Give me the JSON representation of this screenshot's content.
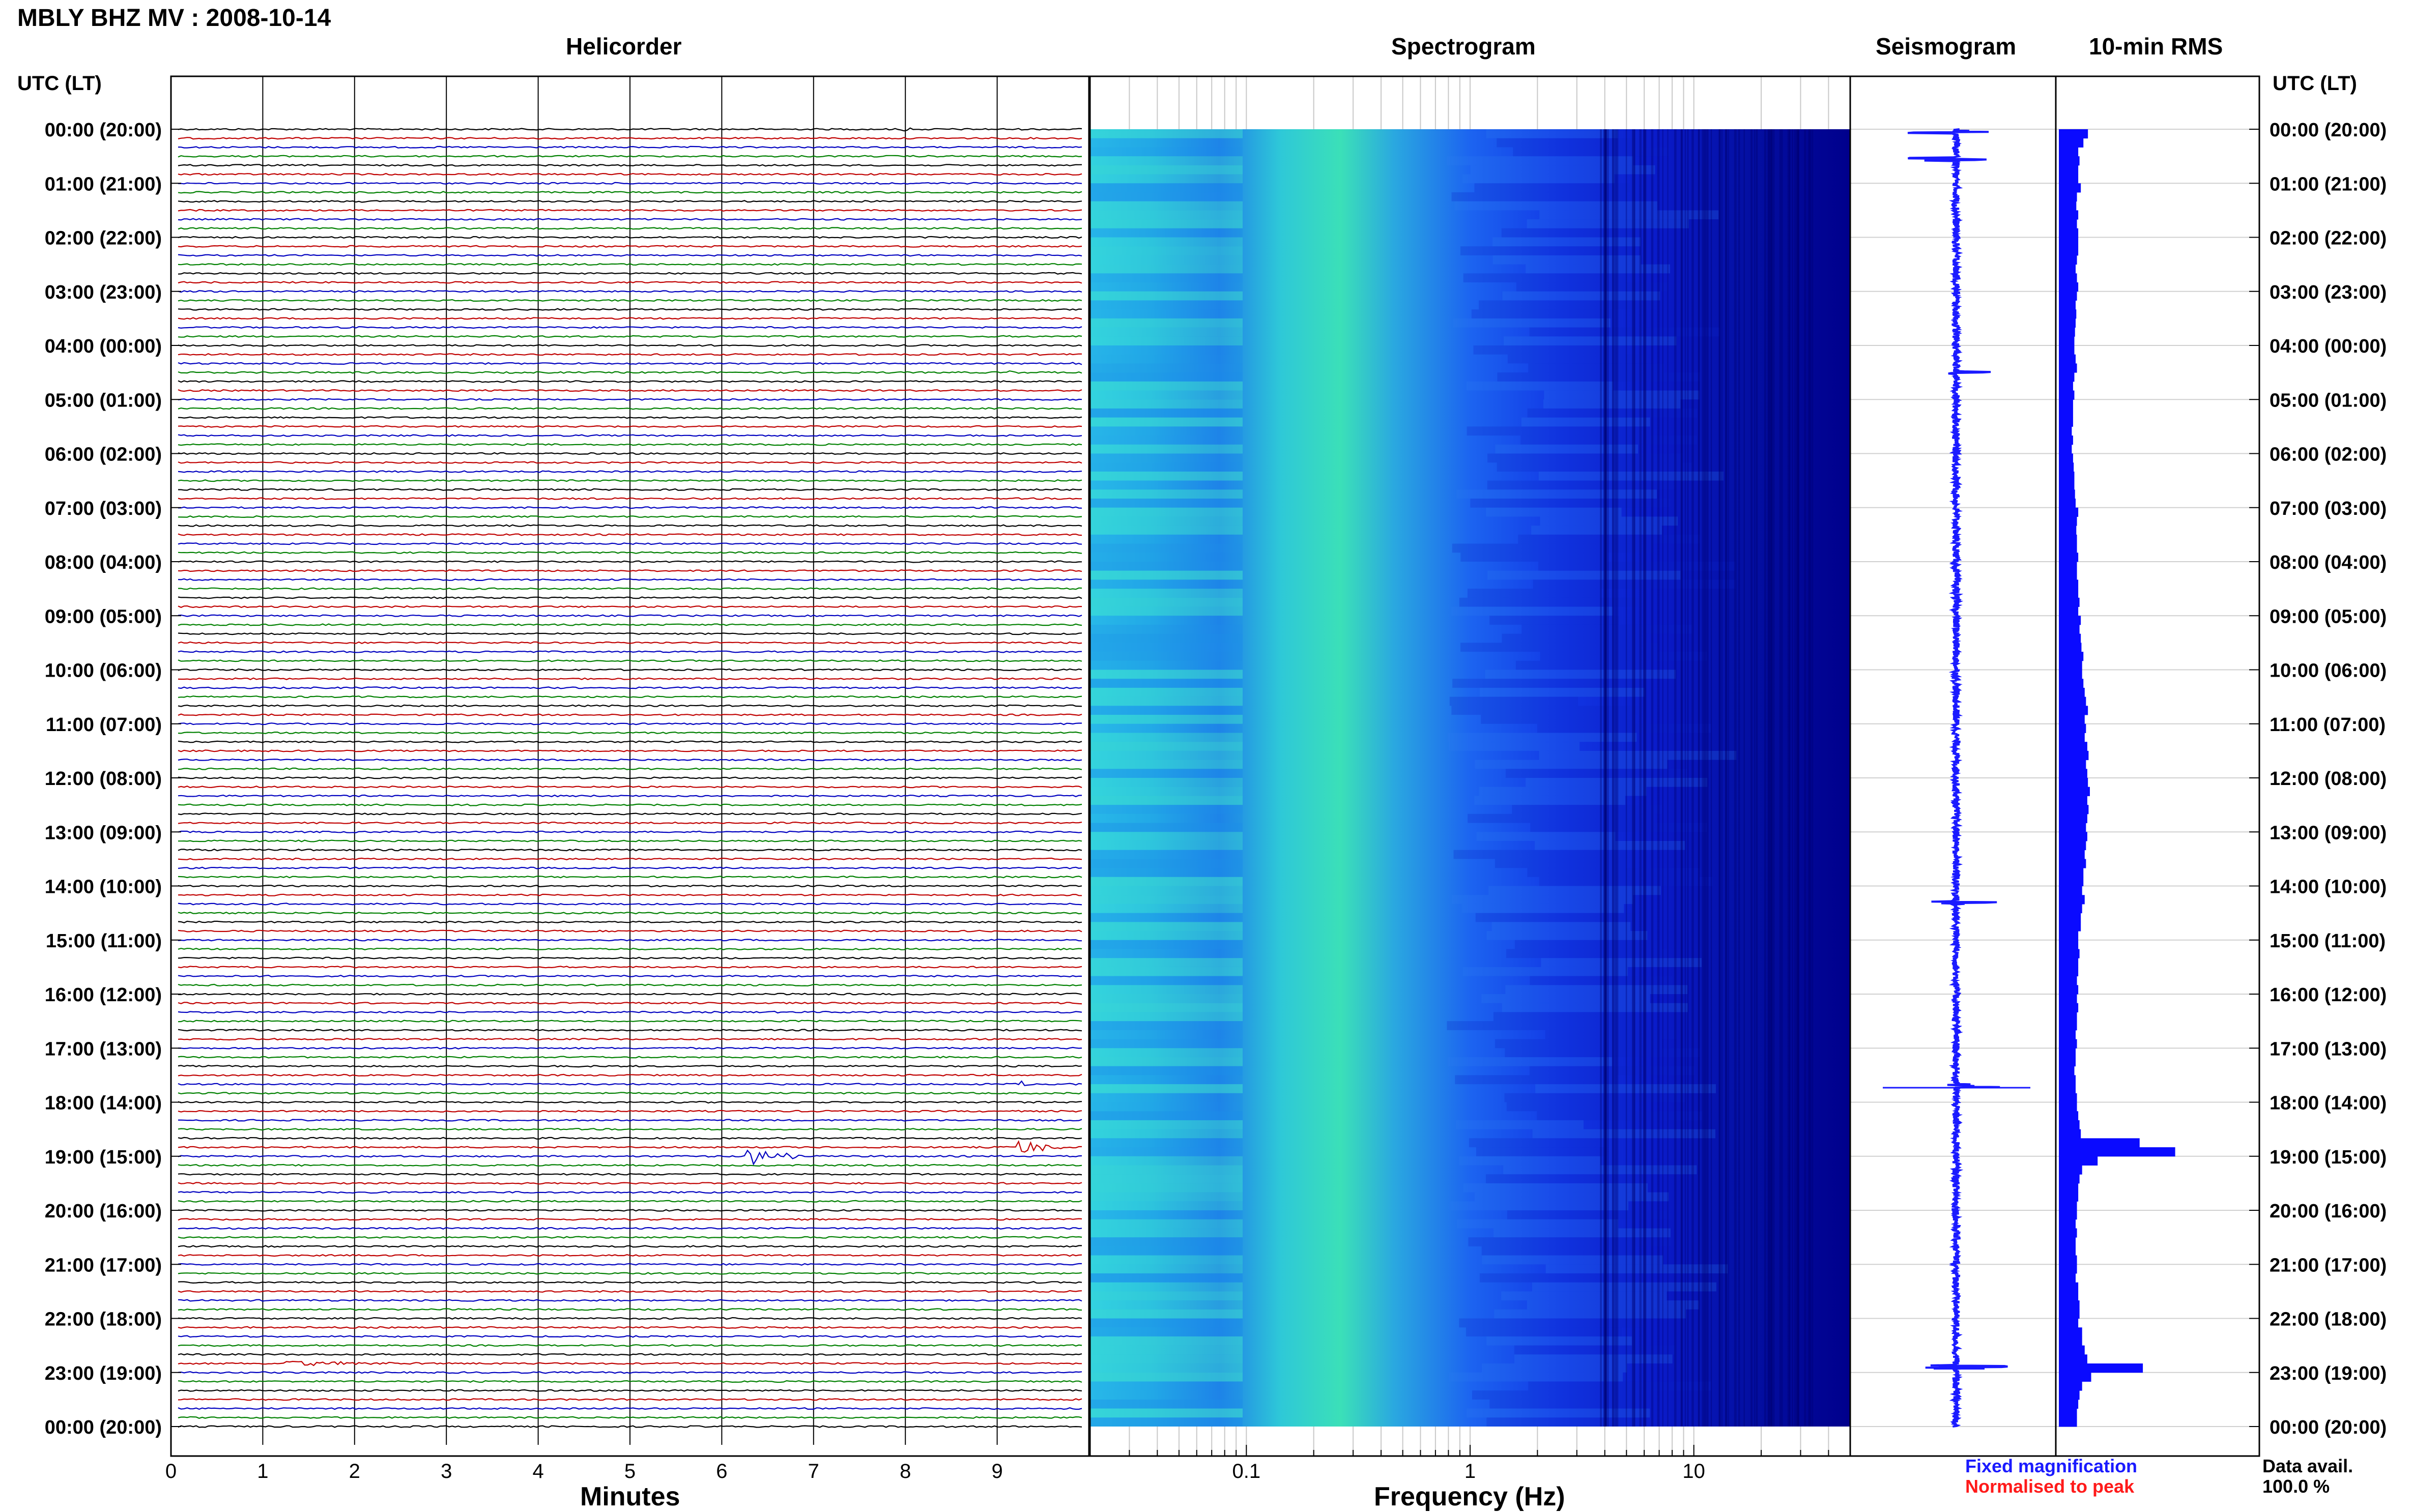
{
  "header": {
    "station_title": "MBLY BHZ MV : 2008-10-14",
    "utc_label_left": "UTC (LT)",
    "utc_label_right": "UTC (LT)"
  },
  "panels": {
    "helicorder": "Helicorder",
    "spectrogram": "Spectrogram",
    "seismogram": "Seismogram",
    "rms": "10-min RMS"
  },
  "axes": {
    "minutes_label": "Minutes",
    "frequency_label": "Frequency (Hz)"
  },
  "legend": {
    "fixed": "Fixed magnification",
    "normalised": "Normalised to peak",
    "fixed_color": "#1a1aff",
    "normalised_color": "#ff1a1a"
  },
  "data_avail": {
    "label": "Data avail.",
    "value": "100.0 %"
  },
  "colors": {
    "trace_cycle": [
      "#000000",
      "#c00000",
      "#0000c0",
      "#008000"
    ],
    "spectrogram_low": "#00008c",
    "spectrogram_high": "#2ee6a8",
    "seismogram": "#1a1aff",
    "rms_bar": "#0a0aff"
  },
  "chart_data": [
    {
      "type": "line",
      "name": "helicorder",
      "title": "Helicorder",
      "xlabel": "Minutes",
      "xlim": [
        0,
        10
      ],
      "xticks": [
        0,
        1,
        2,
        3,
        4,
        5,
        6,
        7,
        8,
        9
      ],
      "rows_per_hour": 6,
      "hour_labels": [
        "00:00 (20:00)",
        "01:00 (21:00)",
        "02:00 (22:00)",
        "03:00 (23:00)",
        "04:00 (00:00)",
        "05:00 (01:00)",
        "06:00 (02:00)",
        "07:00 (03:00)",
        "08:00 (04:00)",
        "09:00 (05:00)",
        "10:00 (06:00)",
        "11:00 (07:00)",
        "12:00 (08:00)",
        "13:00 (09:00)",
        "14:00 (10:00)",
        "15:00 (11:00)",
        "16:00 (12:00)",
        "17:00 (13:00)",
        "18:00 (14:00)",
        "19:00 (15:00)",
        "20:00 (16:00)",
        "21:00 (17:00)",
        "22:00 (18:00)",
        "23:00 (19:00)",
        "00:00 (20:00)"
      ],
      "events": [
        {
          "row": 0,
          "minute": 8.0,
          "amp": 0.4,
          "dur": 0.35
        },
        {
          "row": 8,
          "minute": 1.7,
          "amp": 0.3,
          "dur": 0.1
        },
        {
          "row": 8,
          "minute": 2.05,
          "amp": 0.3,
          "dur": 0.1
        },
        {
          "row": 26,
          "minute": 9.9,
          "amp": 0.5,
          "dur": 0.3
        },
        {
          "row": 27,
          "minute": 9.2,
          "amp": 0.3,
          "dur": 0.15
        },
        {
          "row": 106,
          "minute": 9.35,
          "amp": 0.5,
          "dur": 0.25
        },
        {
          "row": 114,
          "minute": 6.3,
          "amp": 2.5,
          "dur": 0.6
        },
        {
          "row": 113,
          "minute": 9.3,
          "amp": 2.0,
          "dur": 0.5
        },
        {
          "row": 136,
          "minute": 8.7,
          "amp": 0.4,
          "dur": 0.4
        },
        {
          "row": 137,
          "minute": 1.2,
          "amp": 0.6,
          "dur": 1.8
        }
      ]
    },
    {
      "type": "heatmap",
      "name": "spectrogram",
      "title": "Spectrogram",
      "xlabel": "Frequency (Hz)",
      "xscale": "log",
      "xlim": [
        0.02,
        50
      ],
      "xticks": [
        0.1,
        1,
        10
      ]
    },
    {
      "type": "line",
      "name": "seismogram",
      "title": "Seismogram",
      "spikes_hour": [
        0.05,
        0.55,
        4.5,
        17.7,
        14.3,
        22.9
      ]
    },
    {
      "type": "bar",
      "name": "rms",
      "title": "10-min RMS",
      "unit": "relative",
      "values": [
        0.45,
        0.38,
        0.3,
        0.32,
        0.3,
        0.3,
        0.34,
        0.28,
        0.27,
        0.3,
        0.28,
        0.3,
        0.3,
        0.3,
        0.28,
        0.26,
        0.28,
        0.3,
        0.28,
        0.26,
        0.27,
        0.26,
        0.25,
        0.24,
        0.24,
        0.26,
        0.28,
        0.24,
        0.22,
        0.24,
        0.22,
        0.22,
        0.22,
        0.2,
        0.22,
        0.2,
        0.22,
        0.23,
        0.24,
        0.24,
        0.25,
        0.26,
        0.3,
        0.28,
        0.27,
        0.28,
        0.28,
        0.3,
        0.28,
        0.28,
        0.3,
        0.3,
        0.32,
        0.3,
        0.34,
        0.32,
        0.34,
        0.35,
        0.38,
        0.36,
        0.36,
        0.38,
        0.4,
        0.42,
        0.45,
        0.4,
        0.42,
        0.4,
        0.44,
        0.46,
        0.42,
        0.44,
        0.45,
        0.48,
        0.44,
        0.46,
        0.44,
        0.42,
        0.44,
        0.42,
        0.4,
        0.42,
        0.38,
        0.38,
        0.36,
        0.4,
        0.36,
        0.34,
        0.34,
        0.3,
        0.3,
        0.32,
        0.3,
        0.3,
        0.28,
        0.3,
        0.28,
        0.3,
        0.28,
        0.28,
        0.26,
        0.28,
        0.26,
        0.26,
        0.24,
        0.26,
        0.26,
        0.28,
        0.28,
        0.3,
        0.32,
        0.34,
        1.25,
        1.8,
        0.6,
        0.36,
        0.32,
        0.3,
        0.3,
        0.28,
        0.28,
        0.26,
        0.28,
        0.26,
        0.26,
        0.28,
        0.28,
        0.26,
        0.3,
        0.3,
        0.32,
        0.32,
        0.3,
        0.36,
        0.36,
        0.4,
        0.44,
        1.3,
        0.5,
        0.36,
        0.32,
        0.3,
        0.28,
        0.28
      ]
    }
  ]
}
